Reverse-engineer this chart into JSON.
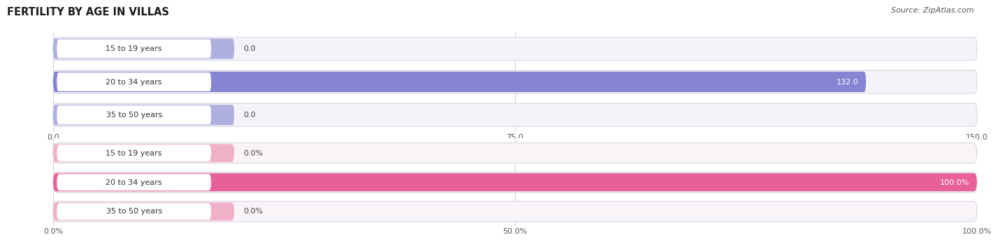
{
  "title": "FERTILITY BY AGE IN VILLAS",
  "source": "Source: ZipAtlas.com",
  "top_chart": {
    "categories": [
      "15 to 19 years",
      "20 to 34 years",
      "35 to 50 years"
    ],
    "values": [
      0.0,
      132.0,
      0.0
    ],
    "xlim": [
      0,
      150
    ],
    "xticks": [
      0.0,
      75.0,
      150.0
    ],
    "xtick_labels": [
      "0.0",
      "75.0",
      "150.0"
    ],
    "bar_color": "#8585d4",
    "bar_stub_color": "#b0b0e0",
    "bg_color": "#eeeef5",
    "row_bg_color": "#f4f4f8"
  },
  "bottom_chart": {
    "categories": [
      "15 to 19 years",
      "20 to 34 years",
      "35 to 50 years"
    ],
    "values": [
      0.0,
      100.0,
      0.0
    ],
    "xlim": [
      0,
      100
    ],
    "xticks": [
      0.0,
      50.0,
      100.0
    ],
    "xtick_labels": [
      "0.0%",
      "50.0%",
      "100.0%"
    ],
    "bar_color": "#e8609a",
    "bar_stub_color": "#f0b0c8",
    "bg_color": "#f5eef3",
    "row_bg_color": "#f9f4f7"
  },
  "label_bg_color": "#ffffff",
  "label_text_color": "#333333",
  "value_text_color_on_bar": "#ffffff",
  "value_text_color_outside": "#444444",
  "bar_height": 0.62,
  "label_fontsize": 8.0,
  "value_fontsize": 8.0,
  "title_fontsize": 10.5,
  "source_fontsize": 8.0,
  "fig_bg": "#ffffff",
  "grid_color": "#d0d0d8"
}
